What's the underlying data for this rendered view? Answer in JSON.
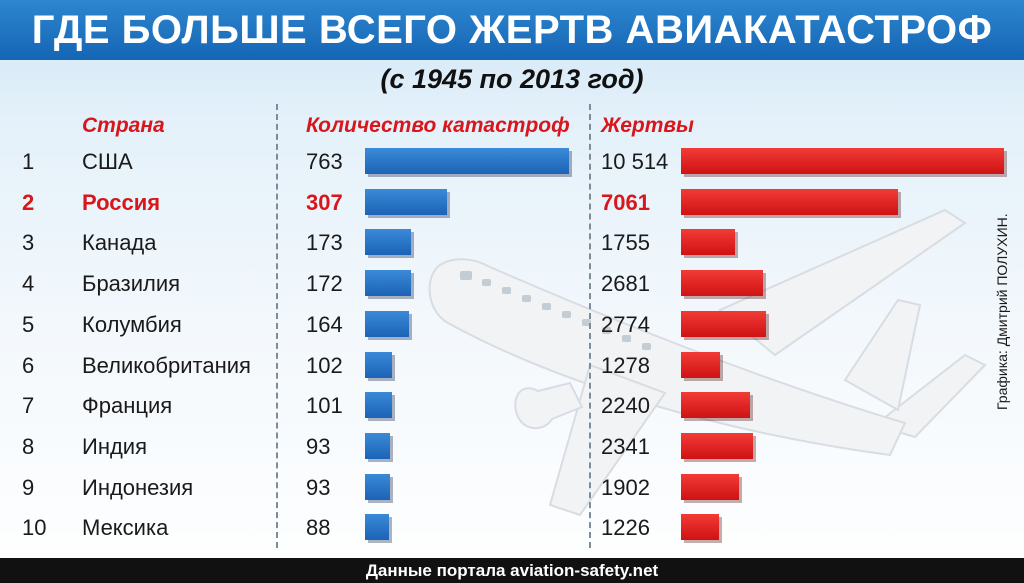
{
  "title": "ГДЕ БОЛЬШЕ ВСЕГО ЖЕРТВ АВИАКАТАСТРОФ",
  "subtitle": "(с 1945 по 2013 год)",
  "headers": {
    "country": "Страна",
    "crashes": "Количество катастроф",
    "victims": "Жертвы"
  },
  "credit": "Графика: Дмитрий ПОЛУХИН.",
  "footer": "Данные портала aviation-safety.net",
  "colors": {
    "title_bg": "#1a6cbd",
    "highlight": "#d8171c",
    "crash_bar": "#2670c4",
    "victim_bar": "#e0201f"
  },
  "illustration": "airplane-image",
  "rows": [
    {
      "rank": "1",
      "country": "США",
      "crashes": "763",
      "victims": "10 514"
    },
    {
      "rank": "2",
      "country": "Россия",
      "crashes": "307",
      "victims": "7061"
    },
    {
      "rank": "3",
      "country": "Канада",
      "crashes": "173",
      "victims": "1755"
    },
    {
      "rank": "4",
      "country": "Бразилия",
      "crashes": "172",
      "victims": "2681"
    },
    {
      "rank": "5",
      "country": "Колумбия",
      "crashes": "164",
      "victims": "2774"
    },
    {
      "rank": "6",
      "country": "Великобритания",
      "crashes": "102",
      "victims": "1278"
    },
    {
      "rank": "7",
      "country": "Франция",
      "crashes": "101",
      "victims": "2240"
    },
    {
      "rank": "8",
      "country": "Индия",
      "crashes": "93",
      "victims": "2341"
    },
    {
      "rank": "9",
      "country": "Индонезия",
      "crashes": "93",
      "victims": "1902"
    },
    {
      "rank": "10",
      "country": "Мексика",
      "crashes": "88",
      "victims": "1226"
    }
  ],
  "chart_data": {
    "type": "bar",
    "orientation": "horizontal",
    "title": "ГДЕ БОЛЬШЕ ВСЕГО ЖЕРТВ АВИАКАТАСТРОФ",
    "subtitle": "(с 1945 по 2013 год)",
    "categories": [
      "США",
      "Россия",
      "Канада",
      "Бразилия",
      "Колумбия",
      "Великобритания",
      "Франция",
      "Индия",
      "Индонезия",
      "Мексика"
    ],
    "series": [
      {
        "name": "Количество катастроф",
        "values": [
          763,
          307,
          173,
          172,
          164,
          102,
          101,
          93,
          93,
          88
        ]
      },
      {
        "name": "Жертвы",
        "values": [
          10514,
          7061,
          1755,
          2681,
          2774,
          1278,
          2240,
          2341,
          1902,
          1226
        ]
      }
    ],
    "highlighted_category": "Россия",
    "grid": false
  }
}
